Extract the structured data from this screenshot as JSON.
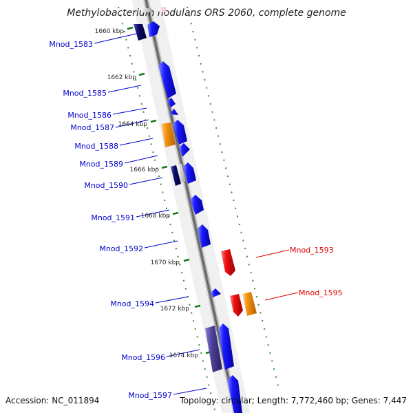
{
  "title": "Methylobacterium nodulans ORS 2060, complete genome",
  "footer": {
    "accession": "Accession: NC_011894",
    "summary": "Topology: circular; Length: 7,772,460 bp; Genes: 7,447"
  },
  "kbp_ticks": [
    "1660 kbp",
    "1662 kbp",
    "1664 kbp",
    "1666 kbp",
    "1668 kbp",
    "1670 kbp",
    "1672 kbp",
    "1674 kbp"
  ],
  "colors": {
    "forward_gene": "#1a1aff",
    "reverse_gene": "#ee1111",
    "orange_gene": "#f29411",
    "dark_gene": "#0b0b66",
    "purple_gene": "#4b3f99",
    "grey_gene": "#c8c8c8",
    "backbone": "#888888",
    "tick_green": "#229922",
    "forward_label": "#0000cc",
    "reverse_label": "#dd0000"
  },
  "genes": {
    "mnod_1583": "Mnod_1583",
    "mnod_1585": "Mnod_1585",
    "mnod_1586": "Mnod_1586",
    "mnod_1587": "Mnod_1587",
    "mnod_1588": "Mnod_1588",
    "mnod_1589": "Mnod_1589",
    "mnod_1590": "Mnod_1590",
    "mnod_1591": "Mnod_1591",
    "mnod_1592": "Mnod_1592",
    "mnod_1593": "Mnod_1593",
    "mnod_1594": "Mnod_1594",
    "mnod_1595": "Mnod_1595",
    "mnod_1596": "Mnod_1596",
    "mnod_1597": "Mnod_1597"
  }
}
